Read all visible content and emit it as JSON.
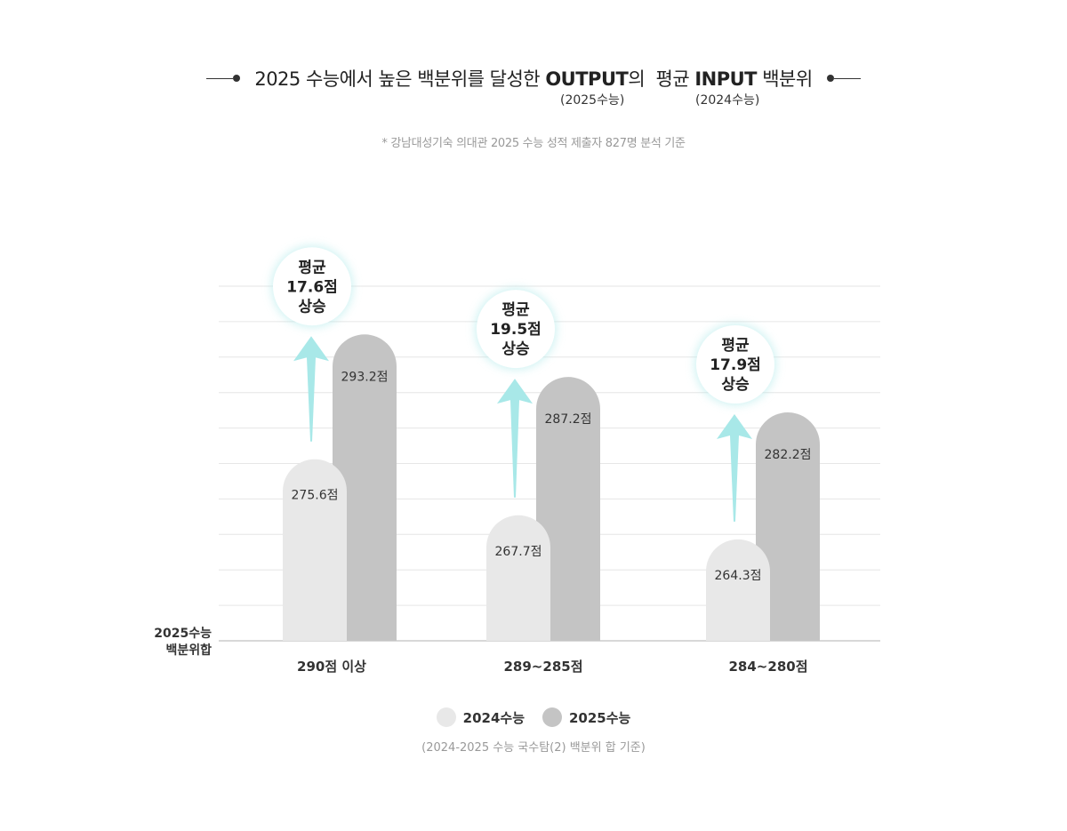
{
  "title": {
    "part1": "2025 수능에서 높은 백분위를 달성한",
    "output_word": "OUTPUT",
    "part2": "의",
    "part3": "평균",
    "input_word": "INPUT",
    "part4": "백분위",
    "output_sub": "(2025수능)",
    "input_sub": "(2024수능)"
  },
  "footnote": "* 강남대성기숙 의대관 2025 수능 성적 제출자 827명 분석 기준",
  "source": "(2024-2025 수능 국수탐(2) 백분위 합 기준)",
  "colors": {
    "series_2024": "#e8e8e8",
    "series_2025": "#c4c4c4",
    "arrow": "#a8e8e8",
    "grid": "#e6e6e6"
  },
  "chart_data": {
    "type": "bar",
    "title": "",
    "ylabel": "2025수능 백분위합",
    "ylim": [
      250,
      300
    ],
    "categories": [
      "290점 이상",
      "289~285점",
      "284~280점"
    ],
    "series": [
      {
        "name": "2024수능",
        "values": [
          275.6,
          267.7,
          264.3
        ],
        "labels": [
          "275.6점",
          "267.7점",
          "264.3점"
        ]
      },
      {
        "name": "2025수능",
        "values": [
          293.2,
          287.2,
          282.2
        ],
        "labels": [
          "293.2점",
          "287.2점",
          "282.2점"
        ]
      }
    ],
    "annotations": [
      {
        "line1": "평균",
        "line2": "17.6점",
        "line3": "상승"
      },
      {
        "line1": "평균",
        "line2": "19.5점",
        "line3": "상승"
      },
      {
        "line1": "평균",
        "line2": "17.9점",
        "line3": "상승"
      }
    ],
    "grid": true,
    "legend": "bottom-center"
  }
}
